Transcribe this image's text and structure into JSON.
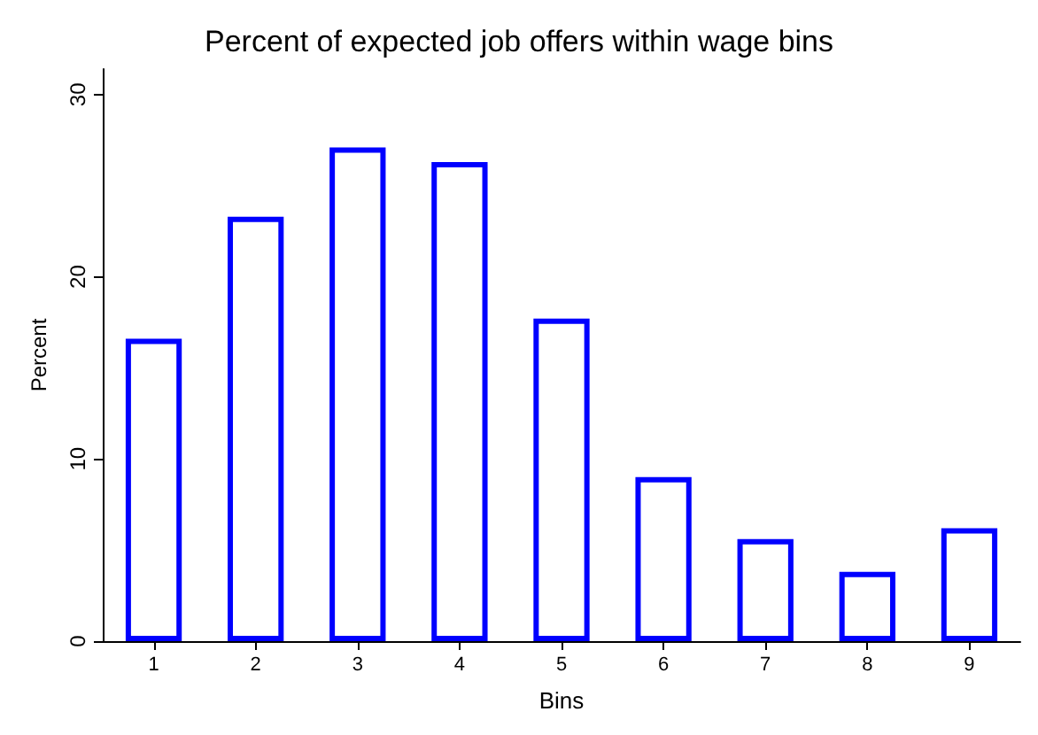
{
  "chart_data": {
    "type": "bar",
    "title": "Percent of expected job offers within wage bins",
    "xlabel": "Bins",
    "ylabel": "Percent",
    "categories": [
      "1",
      "2",
      "3",
      "4",
      "5",
      "6",
      "7",
      "8",
      "9"
    ],
    "values": [
      16.6,
      23.3,
      27.1,
      26.3,
      17.7,
      9.0,
      5.6,
      3.8,
      6.2
    ],
    "color": "#0000ff",
    "ylim": [
      0,
      31.4
    ],
    "yticks": [
      0,
      10,
      20,
      30
    ],
    "grid": false
  }
}
